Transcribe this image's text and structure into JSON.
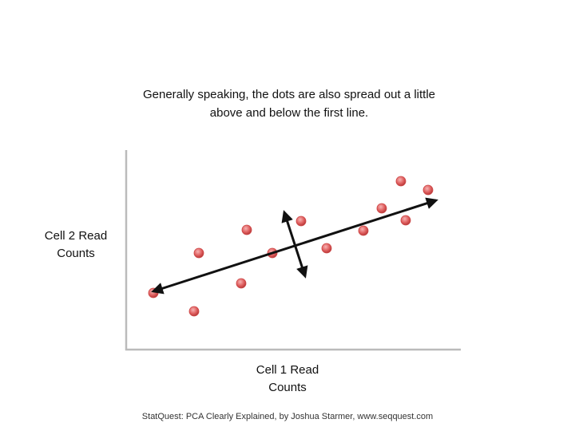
{
  "title": "Generally speaking, the dots are also spread out a little above and below the first line.",
  "y_label": "Cell 2 Read Counts",
  "x_label": "Cell 1 Read Counts",
  "footer": "StatQuest: PCA Clearly Explained, by Joshua Starmer, www.seqquest.com"
}
